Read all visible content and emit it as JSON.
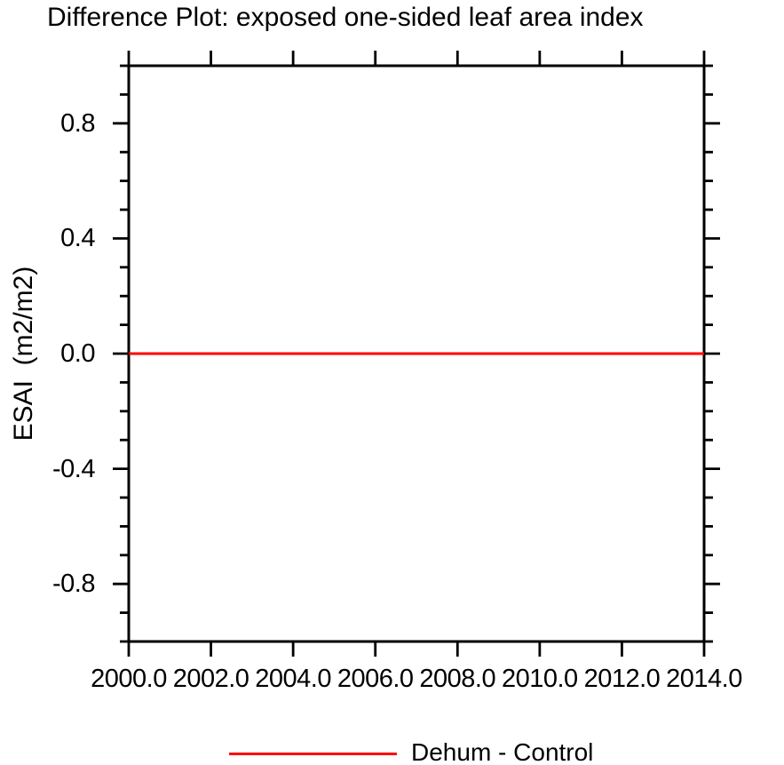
{
  "page": {
    "background": "#ffffff",
    "text_color": "#000000"
  },
  "title": "Difference Plot: exposed one-sided leaf area index",
  "y_axis_label": "ESAI  (m2/m2)",
  "legend": {
    "entries": [
      {
        "label": "Dehum - Control",
        "color": "#ff0000"
      }
    ]
  },
  "chart_data": {
    "type": "line",
    "title": "Difference Plot: exposed one-sided leaf area index",
    "xlabel": "",
    "ylabel": "ESAI (m2/m2)",
    "xlim": [
      2000.0,
      2014.0
    ],
    "ylim": [
      -1.0,
      1.0
    ],
    "x_major_ticks": [
      2000.0,
      2002.0,
      2004.0,
      2006.0,
      2008.0,
      2010.0,
      2012.0,
      2014.0
    ],
    "x_tick_labels": [
      "2000.0",
      "2002.0",
      "2004.0",
      "2006.0",
      "2008.0",
      "2010.0",
      "2012.0",
      "2014.0"
    ],
    "y_major_ticks": [
      0.8,
      0.4,
      0.0,
      -0.4,
      -0.8
    ],
    "y_tick_labels": [
      "0.8",
      "0.4",
      "0.0",
      "-0.4",
      "-0.8"
    ],
    "y_minor_tick_step": 0.1,
    "grid": false,
    "frame_color": "#000000",
    "legend_position": "bottom-center",
    "series": [
      {
        "name": "Dehum - Control",
        "color": "#ff0000",
        "x": [
          2000.0,
          2014.0
        ],
        "y": [
          0.0,
          0.0
        ]
      }
    ]
  }
}
